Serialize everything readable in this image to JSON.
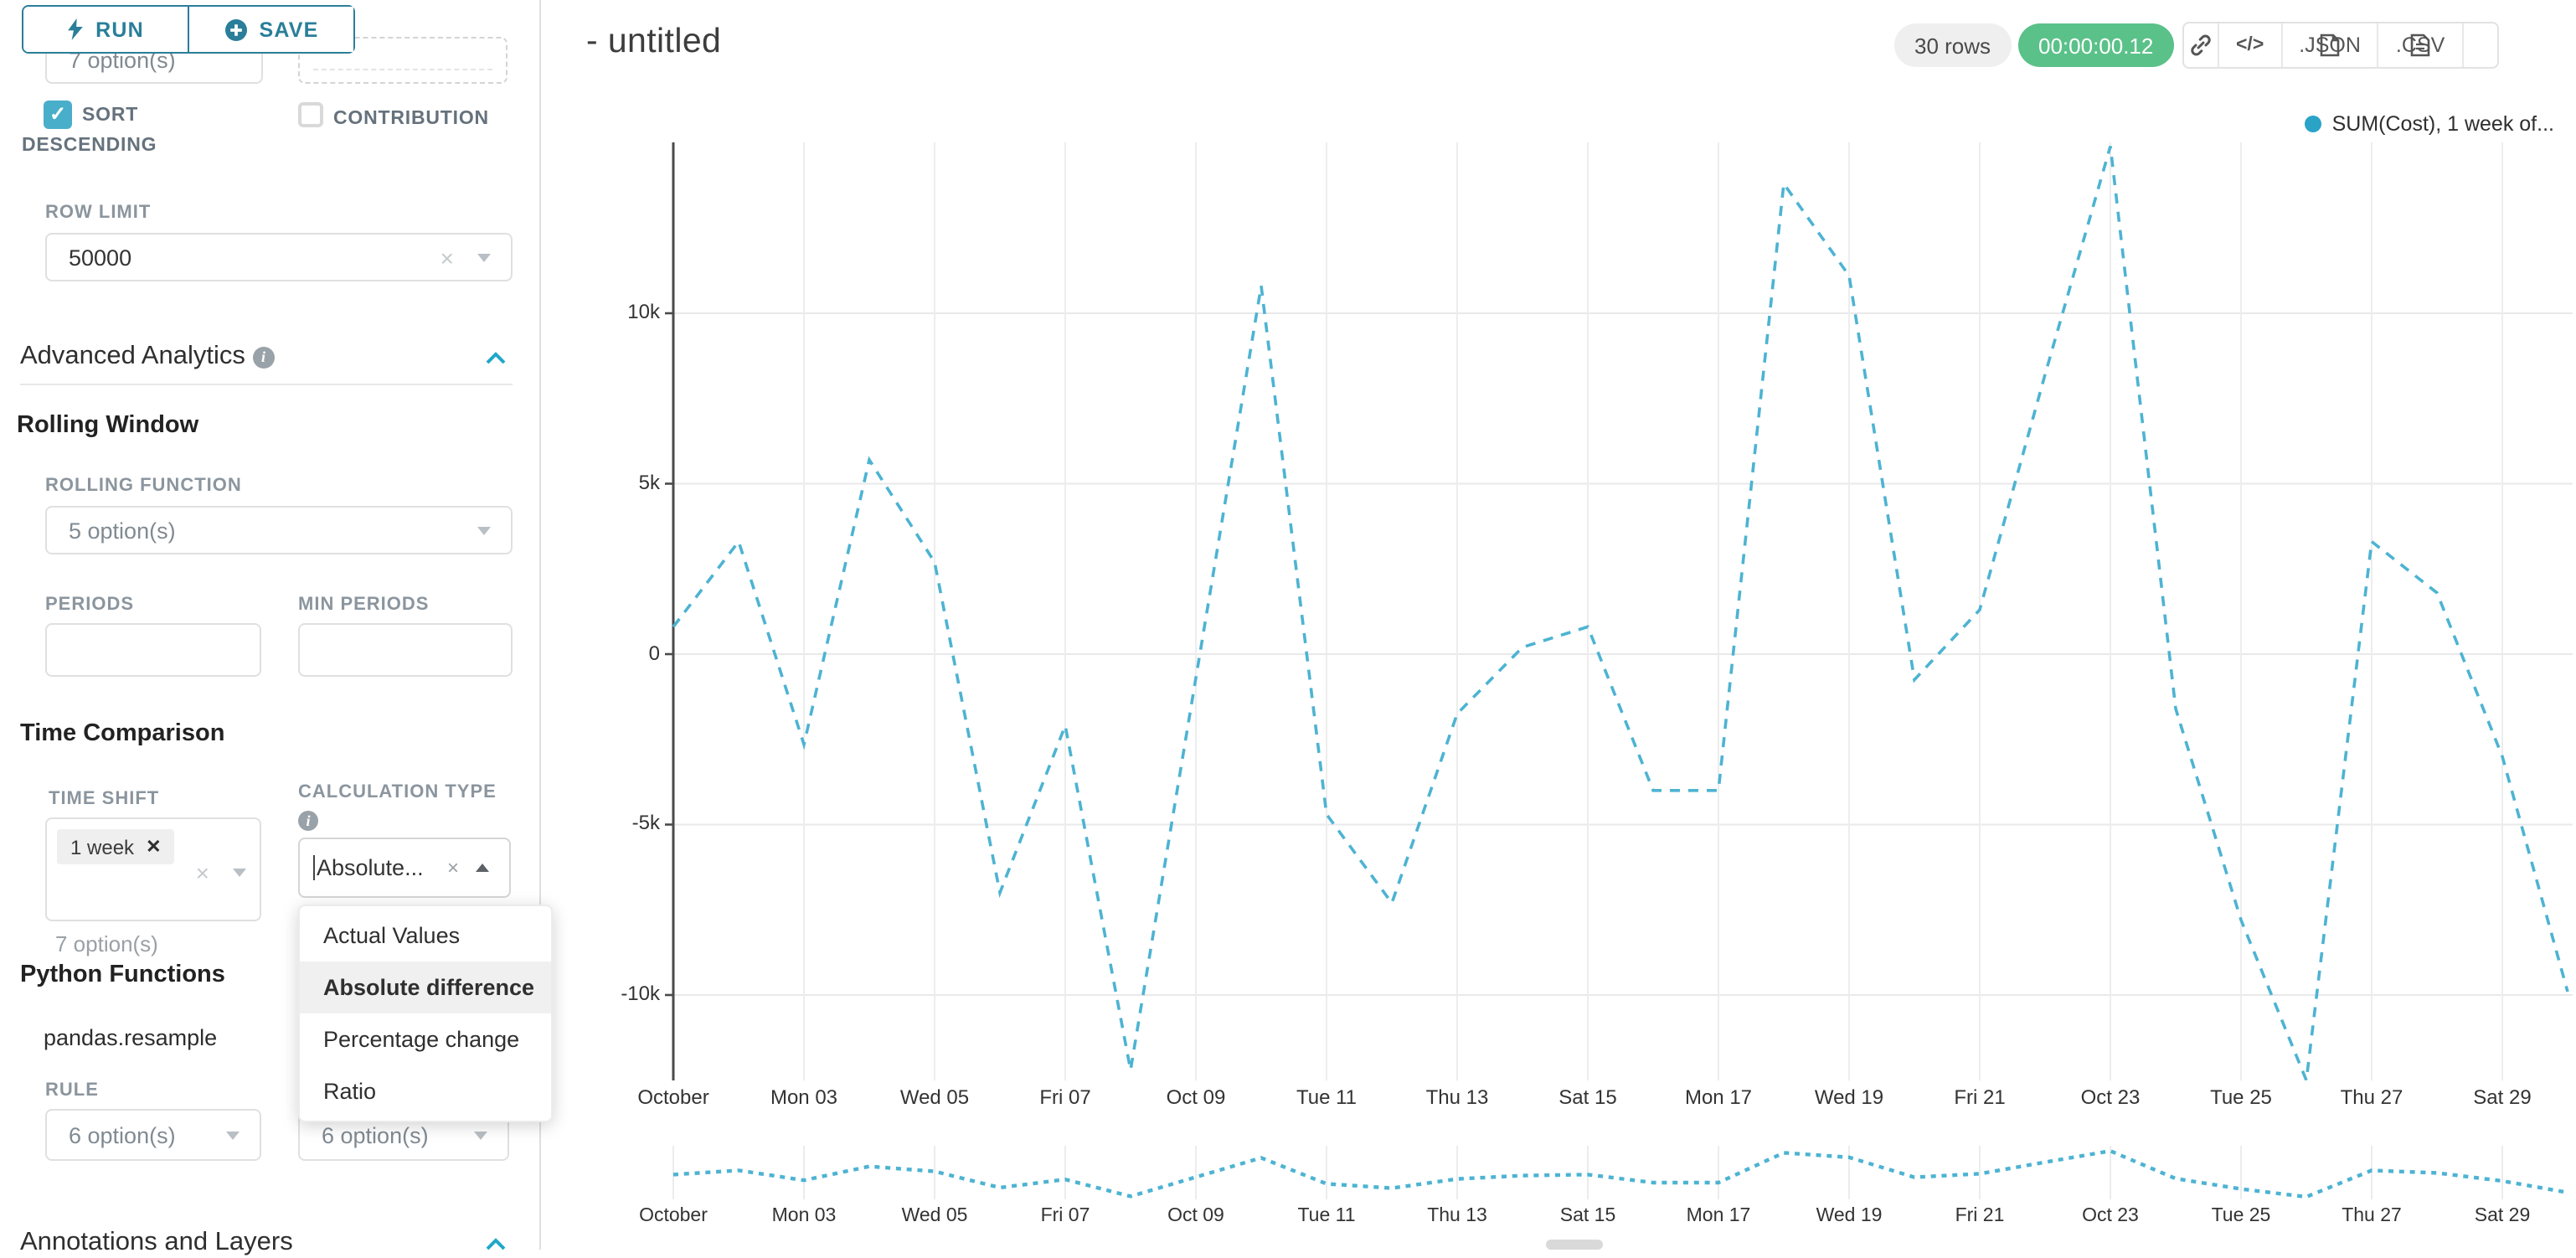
{
  "colors": {
    "accent": "#20a7c9",
    "button_teal": "#2a7e99",
    "checkbox_checked": "#49aec9",
    "timer_green": "#5ac189",
    "line": "#4db3d2",
    "legend_dot": "#2aa3c7",
    "axis": "#4a4a4a",
    "gridline": "#e9e9e9"
  },
  "topbar": {
    "run_label": "RUN",
    "save_label": "SAVE"
  },
  "sidebar": {
    "partial_select_value": "7 option(s)",
    "sort_descending_label": "SORT DESCENDING",
    "contribution_label": "CONTRIBUTION",
    "row_limit_label": "ROW LIMIT",
    "row_limit_value": "50000",
    "advanced_analytics_title": "Advanced Analytics",
    "rolling_window_title": "Rolling Window",
    "rolling_function_label": "ROLLING FUNCTION",
    "rolling_function_value": "5 option(s)",
    "periods_label": "PERIODS",
    "min_periods_label": "MIN PERIODS",
    "time_comparison_title": "Time Comparison",
    "time_shift_label": "TIME SHIFT",
    "time_shift_tag": "1 week",
    "time_shift_hint": "7 option(s)",
    "calculation_type_label": "CALCULATION TYPE",
    "calculation_type_value": "Absolute...",
    "calculation_dropdown": {
      "options": [
        "Actual Values",
        "Absolute difference",
        "Percentage change",
        "Ratio"
      ],
      "selected": "Absolute difference"
    },
    "python_functions_title": "Python Functions",
    "python_functions_subtitle": "pandas.resample",
    "rule_label": "RULE",
    "rule_value_left": "6 option(s)",
    "rule_value_right": "6 option(s)",
    "annotations_title": "Annotations and Layers"
  },
  "header": {
    "title": "- untitled",
    "rows_badge": "30 rows",
    "timer": "00:00:00.12",
    "json_label": ".JSON",
    "csv_label": ".CSV"
  },
  "legend": {
    "label": "SUM(Cost), 1 week of..."
  },
  "chart_data": {
    "type": "line",
    "title": "- untitled",
    "grid": true,
    "legend_position": "top-right",
    "x_dates": [
      "Oct 01",
      "Oct 02",
      "Oct 03",
      "Oct 04",
      "Oct 05",
      "Oct 06",
      "Oct 07",
      "Oct 08",
      "Oct 09",
      "Oct 10",
      "Oct 11",
      "Oct 12",
      "Oct 13",
      "Oct 14",
      "Oct 15",
      "Oct 16",
      "Oct 17",
      "Oct 18",
      "Oct 19",
      "Oct 20",
      "Oct 21",
      "Oct 22",
      "Oct 23",
      "Oct 24",
      "Oct 25",
      "Oct 26",
      "Oct 27",
      "Oct 28",
      "Oct 29",
      "Oct 30"
    ],
    "xtick_labels": [
      "October",
      "Mon 03",
      "Wed 05",
      "Fri 07",
      "Oct 09",
      "Tue 11",
      "Thu 13",
      "Sat 15",
      "Mon 17",
      "Wed 19",
      "Fri 21",
      "Oct 23",
      "Tue 25",
      "Thu 27",
      "Sat 29"
    ],
    "ytick_labels": [
      "10k",
      "5k",
      "0",
      "-5k",
      "-10k"
    ],
    "ytick_values": [
      10000,
      5000,
      0,
      -5000,
      -10000
    ],
    "ylim": [
      -12500,
      15000
    ],
    "series": [
      {
        "name": "SUM(Cost), 1 week offset",
        "legend_label": "SUM(Cost), 1 week of...",
        "line_style": "dashed",
        "color": "#4db3d2",
        "values": [
          800,
          3300,
          -2650,
          5700,
          2700,
          -7000,
          -2100,
          -12200,
          -700,
          10800,
          -4700,
          -7300,
          -1750,
          200,
          800,
          -4000,
          -4000,
          13800,
          11100,
          -750,
          1300,
          8200,
          14900,
          -1600,
          -7800,
          -12500,
          3300,
          1800,
          -3000,
          -9900
        ]
      }
    ]
  }
}
